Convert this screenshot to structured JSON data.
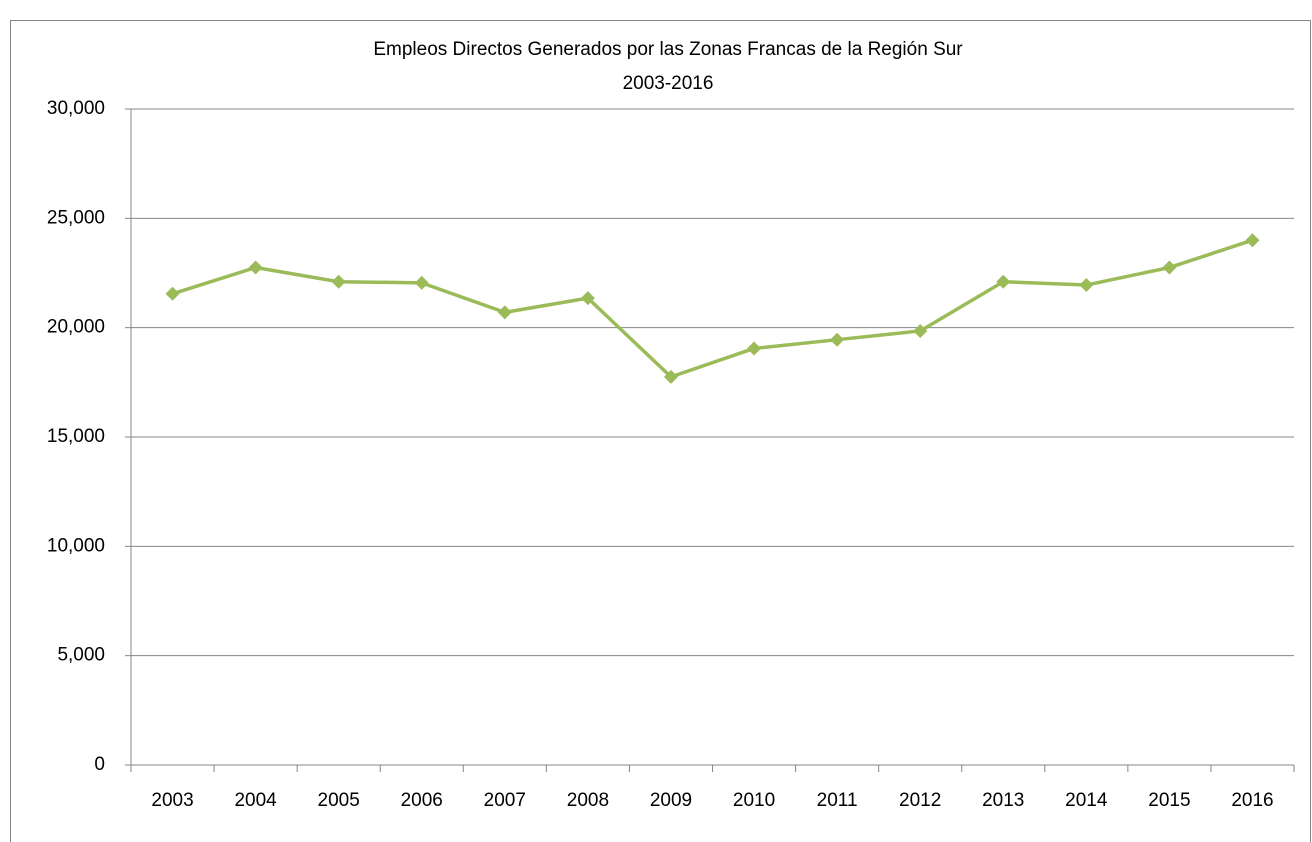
{
  "chart_data": {
    "type": "line",
    "title": "Empleos Directos Generados por las Zonas Francas de la Región Sur",
    "subtitle": "2003-2016",
    "categories": [
      "2003",
      "2004",
      "2005",
      "2006",
      "2007",
      "2008",
      "2009",
      "2010",
      "2011",
      "2012",
      "2013",
      "2014",
      "2015",
      "2016"
    ],
    "series": [
      {
        "color": "#9bbb59",
        "values": [
          21550,
          22750,
          22100,
          22050,
          20700,
          21350,
          17750,
          19050,
          19450,
          19850,
          22100,
          21950,
          22750,
          24000
        ]
      }
    ],
    "ylim": [
      0,
      30000
    ],
    "yticks": [
      0,
      {
        "value": 5000,
        "label": "5,000"
      },
      {
        "value": 10000,
        "label": "10,000"
      },
      {
        "value": 15000,
        "label": "15,000"
      },
      {
        "value": 20000,
        "label": "20,000"
      },
      {
        "value": 25000,
        "label": "25,000"
      },
      {
        "value": 30000,
        "label": "30,000"
      }
    ],
    "grid": true
  }
}
